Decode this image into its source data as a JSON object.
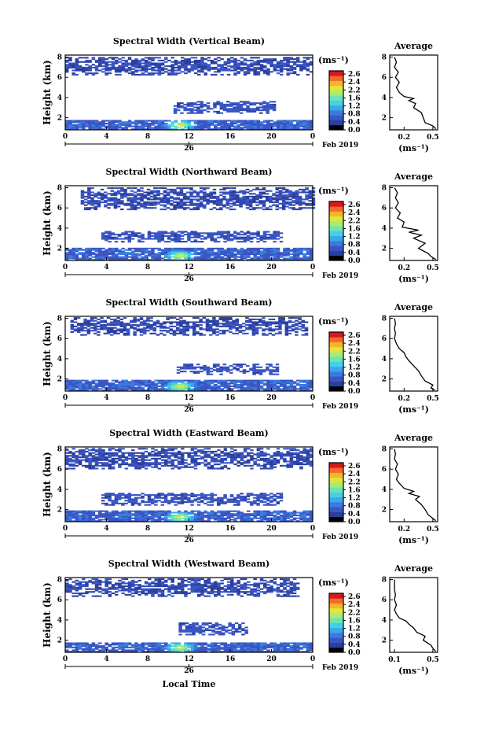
{
  "colors": {
    "colormap": [
      "#000000",
      "#2b3f9e",
      "#3a55c4",
      "#3b7bdc",
      "#3aa8ea",
      "#44d0e6",
      "#6fe2b6",
      "#a6ec72",
      "#e0e63b",
      "#f7b32b",
      "#f26b2a",
      "#d7191c"
    ],
    "profile_line": "#000000"
  },
  "chart_data": [
    {
      "type": "heatmap",
      "title": "Spectral Width (Vertical Beam)",
      "ylabel": "Height (km)",
      "yticks": [
        "2",
        "4",
        "6",
        "8"
      ],
      "ylim": [
        0.8,
        8.2
      ],
      "xticks": [
        "0",
        "4",
        "8",
        "12",
        "16",
        "20",
        "0"
      ],
      "xlim": [
        0,
        24
      ],
      "date_tick": "26",
      "date_text": "Feb 2019",
      "colorbar": {
        "unit": "(ms⁻¹)",
        "ticks": [
          "2.6",
          "2.4",
          "2.2",
          "1.6",
          "1.2",
          "0.8",
          "0.4",
          "0.0"
        ],
        "range": [
          0.0,
          2.8
        ]
      },
      "layers": [
        {
          "name": "boundary layer",
          "t": [
            0,
            24
          ],
          "h": [
            0.8,
            1.7
          ],
          "level": 0.45
        },
        {
          "name": "upper layer",
          "t": [
            0,
            24
          ],
          "h": [
            6.2,
            8.0
          ],
          "level": 0.25
        },
        {
          "name": "mid cloud",
          "t": [
            10.5,
            20.3
          ],
          "h": [
            2.4,
            3.6
          ],
          "level": 0.35
        }
      ],
      "hotspot": {
        "t": 11,
        "h": 1.2,
        "level": 2.0
      }
    },
    {
      "type": "heatmap",
      "title": "Spectral Width (Northward Beam)",
      "ylabel": "Height (km)",
      "yticks": [
        "2",
        "4",
        "6",
        "8"
      ],
      "ylim": [
        0.8,
        8.2
      ],
      "xticks": [
        "0",
        "4",
        "8",
        "12",
        "16",
        "20",
        "0"
      ],
      "xlim": [
        0,
        24
      ],
      "date_tick": "26",
      "date_text": "Feb 2019",
      "colorbar": {
        "unit": "(ms⁻¹)",
        "ticks": [
          "2.6",
          "2.4",
          "2.2",
          "1.6",
          "1.2",
          "0.8",
          "0.4",
          "0.0"
        ],
        "range": [
          0.0,
          2.8
        ]
      },
      "layers": [
        {
          "name": "boundary layer",
          "t": [
            0,
            24
          ],
          "h": [
            0.8,
            2.0
          ],
          "level": 0.45
        },
        {
          "name": "upper layer",
          "t": [
            1.5,
            24
          ],
          "h": [
            5.8,
            8.0
          ],
          "level": 0.25
        },
        {
          "name": "mid cloud",
          "t": [
            3.5,
            20.8
          ],
          "h": [
            2.6,
            3.7
          ],
          "level": 0.35
        }
      ],
      "hotspot": {
        "t": 11,
        "h": 1.2,
        "level": 2.0
      }
    },
    {
      "type": "heatmap",
      "title": "Spectral Width (Southward Beam)",
      "ylabel": "Height (km)",
      "yticks": [
        "2",
        "4",
        "6",
        "8"
      ],
      "ylim": [
        0.8,
        8.2
      ],
      "xticks": [
        "0",
        "4",
        "8",
        "12",
        "16",
        "20",
        "0"
      ],
      "xlim": [
        0,
        24
      ],
      "date_tick": "26",
      "date_text": "Feb 2019",
      "colorbar": {
        "unit": "(ms⁻¹)",
        "ticks": [
          "2.6",
          "2.4",
          "2.2",
          "1.6",
          "1.2",
          "0.8",
          "0.4",
          "0.0"
        ],
        "range": [
          0.0,
          2.8
        ]
      },
      "layers": [
        {
          "name": "boundary layer",
          "t": [
            0,
            24
          ],
          "h": [
            0.8,
            1.8
          ],
          "level": 0.45
        },
        {
          "name": "upper layer",
          "t": [
            0.5,
            23.5
          ],
          "h": [
            6.3,
            8.0
          ],
          "level": 0.25
        },
        {
          "name": "mid cloud",
          "t": [
            10.8,
            20.5
          ],
          "h": [
            2.4,
            3.4
          ],
          "level": 0.35
        }
      ],
      "hotspot": {
        "t": 11,
        "h": 1.2,
        "level": 2.0
      }
    },
    {
      "type": "heatmap",
      "title": "Spectral Width (Eastward Beam)",
      "ylabel": "Height (km)",
      "yticks": [
        "2",
        "4",
        "6",
        "8"
      ],
      "ylim": [
        0.8,
        8.2
      ],
      "xticks": [
        "0",
        "4",
        "8",
        "12",
        "16",
        "20",
        "0"
      ],
      "xlim": [
        0,
        24
      ],
      "date_tick": "26",
      "date_text": "Feb 2019",
      "colorbar": {
        "unit": "(ms⁻¹)",
        "ticks": [
          "2.6",
          "2.4",
          "2.2",
          "1.6",
          "1.2",
          "0.8",
          "0.4",
          "0.0"
        ],
        "range": [
          0.0,
          2.8
        ]
      },
      "layers": [
        {
          "name": "boundary layer",
          "t": [
            0,
            24
          ],
          "h": [
            0.8,
            1.8
          ],
          "level": 0.45
        },
        {
          "name": "upper layer",
          "t": [
            0,
            24
          ],
          "h": [
            6.0,
            8.0
          ],
          "level": 0.25
        },
        {
          "name": "mid cloud",
          "t": [
            3.5,
            20.8
          ],
          "h": [
            2.4,
            3.6
          ],
          "level": 0.35
        }
      ],
      "hotspot": {
        "t": 11,
        "h": 1.2,
        "level": 2.0
      }
    },
    {
      "type": "heatmap",
      "title": "Spectral Width (Westward Beam)",
      "ylabel": "Height (km)",
      "yticks": [
        "2",
        "4",
        "6",
        "8"
      ],
      "ylim": [
        0.8,
        8.2
      ],
      "xticks": [
        "0",
        "4",
        "8",
        "12",
        "16",
        "20",
        "0"
      ],
      "xlim": [
        0,
        24
      ],
      "xlabel": "Local Time",
      "date_tick": "26",
      "date_text": "Feb 2019",
      "colorbar": {
        "unit": "(ms⁻¹)",
        "ticks": [
          "2.6",
          "2.4",
          "2.2",
          "1.6",
          "1.2",
          "0.8",
          "0.4",
          "0.0"
        ],
        "range": [
          0.0,
          2.8
        ]
      },
      "layers": [
        {
          "name": "boundary layer",
          "t": [
            0,
            24
          ],
          "h": [
            0.8,
            1.7
          ],
          "level": 0.45
        },
        {
          "name": "upper layer",
          "t": [
            0,
            22.5
          ],
          "h": [
            6.3,
            8.0
          ],
          "level": 0.25
        },
        {
          "name": "mid cloud",
          "t": [
            11.0,
            17.5
          ],
          "h": [
            2.5,
            3.7
          ],
          "level": 0.35
        }
      ],
      "hotspot": {
        "t": 11,
        "h": 1.2,
        "level": 2.0
      }
    },
    {
      "type": "line",
      "title": "Average",
      "xlabel": "(ms⁻¹)",
      "yticks": [
        "2",
        "4",
        "6",
        "8"
      ],
      "xticks": [
        "0.2",
        "0.5"
      ],
      "xlim": [
        0.05,
        0.55
      ],
      "ylim": [
        0.8,
        8.2
      ],
      "x": [
        0.53,
        0.5,
        0.42,
        0.4,
        0.38,
        0.3,
        0.32,
        0.25,
        0.3,
        0.2,
        0.15,
        0.12,
        0.15,
        0.11,
        0.14,
        0.1,
        0.12,
        0.1
      ],
      "y": [
        0.9,
        1.2,
        1.5,
        2.0,
        2.5,
        3.0,
        3.4,
        3.7,
        3.9,
        4.1,
        4.5,
        5.0,
        5.5,
        6.0,
        6.5,
        7.0,
        7.5,
        8.0
      ]
    },
    {
      "type": "line",
      "title": "Average",
      "xlabel": "(ms⁻¹)",
      "yticks": [
        "2",
        "4",
        "6",
        "8"
      ],
      "xticks": [
        "0.2",
        "0.5"
      ],
      "xlim": [
        0.05,
        0.55
      ],
      "ylim": [
        0.8,
        8.2
      ],
      "x": [
        0.53,
        0.48,
        0.45,
        0.35,
        0.42,
        0.3,
        0.38,
        0.25,
        0.35,
        0.18,
        0.2,
        0.13,
        0.16,
        0.11,
        0.14,
        0.11,
        0.13,
        0.1
      ],
      "y": [
        0.9,
        1.2,
        1.5,
        2.0,
        2.5,
        3.0,
        3.3,
        3.6,
        3.8,
        4.1,
        4.6,
        5.0,
        5.5,
        6.0,
        6.5,
        7.0,
        7.5,
        8.0
      ]
    },
    {
      "type": "line",
      "title": "Average",
      "xlabel": "(ms⁻¹)",
      "yticks": [
        "2",
        "4",
        "6",
        "8"
      ],
      "xticks": [
        "0.2",
        "0.5"
      ],
      "xlim": [
        0.05,
        0.55
      ],
      "ylim": [
        0.8,
        8.2
      ],
      "x": [
        0.52,
        0.48,
        0.5,
        0.42,
        0.38,
        0.35,
        0.3,
        0.25,
        0.22,
        0.2,
        0.15,
        0.12,
        0.1,
        0.11,
        0.1,
        0.11,
        0.1
      ],
      "y": [
        0.9,
        1.1,
        1.4,
        1.8,
        2.3,
        2.8,
        3.3,
        3.8,
        4.2,
        4.6,
        5.0,
        5.5,
        6.0,
        6.5,
        7.0,
        7.5,
        8.0
      ]
    },
    {
      "type": "line",
      "title": "Average",
      "xlabel": "(ms⁻¹)",
      "yticks": [
        "2",
        "4",
        "6",
        "8"
      ],
      "xticks": [
        "0.2",
        "0.5"
      ],
      "xlim": [
        0.05,
        0.55
      ],
      "ylim": [
        0.8,
        8.2
      ],
      "x": [
        0.53,
        0.49,
        0.45,
        0.42,
        0.38,
        0.32,
        0.36,
        0.25,
        0.3,
        0.2,
        0.15,
        0.12,
        0.14,
        0.11,
        0.13,
        0.1,
        0.11,
        0.1
      ],
      "y": [
        0.9,
        1.2,
        1.5,
        2.0,
        2.5,
        3.0,
        3.3,
        3.6,
        3.8,
        4.1,
        4.6,
        5.0,
        5.5,
        6.0,
        6.5,
        7.0,
        7.5,
        8.0
      ]
    },
    {
      "type": "line",
      "title": "Average",
      "xlabel": "(ms⁻¹)",
      "yticks": [
        "2",
        "4",
        "6",
        "8"
      ],
      "xticks": [
        "0.1",
        "0.5"
      ],
      "xlim": [
        0.05,
        0.55
      ],
      "ylim": [
        0.8,
        8.2
      ],
      "x": [
        0.53,
        0.5,
        0.48,
        0.4,
        0.42,
        0.33,
        0.3,
        0.25,
        0.22,
        0.15,
        0.12,
        0.1,
        0.12,
        0.1,
        0.11,
        0.1,
        0.1
      ],
      "y": [
        0.9,
        1.2,
        1.5,
        2.0,
        2.4,
        2.8,
        3.2,
        3.6,
        3.9,
        4.2,
        4.6,
        5.0,
        5.5,
        6.0,
        6.5,
        7.0,
        8.0
      ]
    }
  ]
}
